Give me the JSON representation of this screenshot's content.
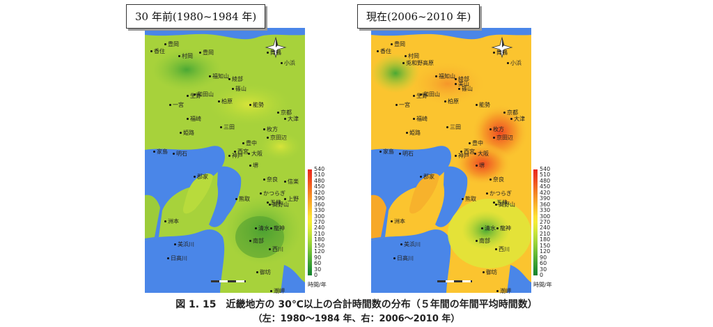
{
  "panels": [
    {
      "title": "30 年前(1980~1984 年)",
      "places": [
        "豊岡",
        "香住",
        "村岡",
        "豊岡",
        "福知山",
        "綾部",
        "和田山",
        "生野",
        "一宮",
        "柏原",
        "篠山",
        "福崎",
        "三田",
        "姫路",
        "能勢",
        "京都",
        "大津",
        "枚方",
        "京田辺",
        "家島",
        "明石",
        "神戸",
        "西宮",
        "豊中",
        "大阪",
        "堺",
        "郡家",
        "奈良",
        "五條",
        "洲本",
        "熊取",
        "かつらぎ",
        "高野山",
        "清水",
        "龍神",
        "南部",
        "美浜川",
        "日高川",
        "西川",
        "御坊",
        "潮岬",
        "信楽",
        "上野",
        "小浜",
        "舞鶴"
      ]
    },
    {
      "title": "現在(2006~2010 年)",
      "places": [
        "豊岡",
        "香住",
        "兎和野高原",
        "村岡",
        "福知山",
        "綾部",
        "和田山",
        "生野",
        "一宮",
        "柏原",
        "篠山",
        "福崎",
        "三田",
        "姫路",
        "能勢",
        "京都",
        "大津",
        "枚方",
        "京田辺",
        "家島",
        "明石",
        "神戸",
        "西宮",
        "豊中",
        "大阪",
        "堺",
        "郡家",
        "奈良",
        "五條",
        "洲本",
        "熊取",
        "かつらぎ",
        "高野山",
        "清水",
        "龍神",
        "南部",
        "美浜川",
        "日高川",
        "西川",
        "御坊",
        "潮岬",
        "小浜",
        "舞鶴",
        "美山"
      ]
    }
  ],
  "legend": {
    "values": [
      "540",
      "510",
      "480",
      "450",
      "420",
      "390",
      "360",
      "330",
      "300",
      "270",
      "240",
      "210",
      "180",
      "150",
      "120",
      "90",
      "60",
      "30",
      "0"
    ],
    "unit": "時間/年",
    "colors": [
      "#e8281e",
      "#ec3a1f",
      "#ef5020",
      "#f26a22",
      "#f48424",
      "#f79c28",
      "#f9b42c",
      "#fbca30",
      "#fde234",
      "#f3ec36",
      "#dde938",
      "#c3e23a",
      "#a8d93a",
      "#8ccd38",
      "#70bf36",
      "#55b034",
      "#3ca032",
      "#259130",
      "#118230"
    ],
    "water": "#4a86e8"
  },
  "caption": {
    "line1": "図 1. 15　近畿地方の 30℃以上の合計時間数の分布（５年間の年間平均時間数）",
    "line2": "（左：1980～1984 年、右：2006～2010 年）"
  }
}
